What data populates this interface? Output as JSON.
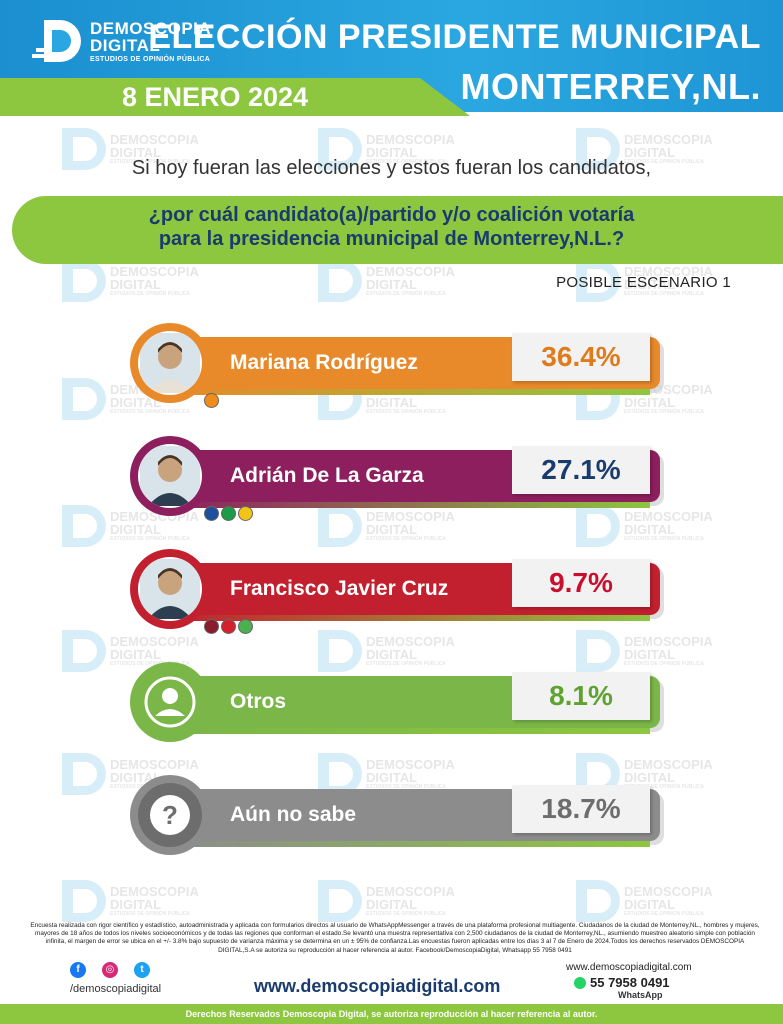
{
  "header": {
    "brand_name_1": "DEMOSCOPIA",
    "brand_name_2": "DIGITAL",
    "brand_tagline": "ESTUDIOS DE OPINIÓN PÚBLICA",
    "title_line_1": "ELECCIÓN PRESIDENTE MUNICIPAL",
    "title_line_2": "MONTERREY,NL.",
    "date": "8 ENERO 2024"
  },
  "colors": {
    "header_blue": "#2aa7e0",
    "accent_green": "#8dc63f",
    "navy": "#1a3b6e"
  },
  "watermark": {
    "line_1": "DEMOSCOPIA",
    "line_2": "DIGITAL",
    "line_3": "ESTUDIOS DE OPINIÓN PÚBLICA"
  },
  "question": {
    "intro": "Si hoy fueran las elecciones y estos fueran los candidatos,",
    "line_1": "¿por cuál candidato(a)/partido y/o coalición votaría",
    "line_2": "para la presidencia municipal de Monterrey,N.L.?",
    "scenario": "POSIBLE ESCENARIO 1"
  },
  "chart_data": {
    "type": "bar",
    "categories": [
      "Mariana Rodríguez",
      "Adrián De La Garza",
      "Francisco Javier Cruz",
      "Otros",
      "Aún no sabe"
    ],
    "values": [
      36.4,
      27.1,
      9.7,
      8.1,
      18.7
    ],
    "value_labels": [
      "36.4%",
      "27.1%",
      "9.7%",
      "8.1%",
      "18.7%"
    ],
    "unit": "%",
    "bar_colors": [
      "#e8892a",
      "#8e1f5e",
      "#c2202e",
      "#7ab648",
      "#8c8c8c"
    ],
    "pct_colors": [
      "#e07b1c",
      "#1a3b6e",
      "#c8102e",
      "#5fa230",
      "#6d6d6d"
    ],
    "icons": [
      "candidate-photo",
      "candidate-photo",
      "candidate-photo",
      "person-icon",
      "question-icon"
    ],
    "party_logos": [
      [
        "MC"
      ],
      [
        "PAN",
        "PRI",
        "PRD"
      ],
      [
        "MORENA",
        "PT",
        "PVEM"
      ],
      [],
      []
    ]
  },
  "footer": {
    "disclaimer": "Encuesta realizada con rigor científico y estadístico, autoadministrada y aplicada con formularios directos al usuario de WhatsAppMessenger a través de una plataforma profesional multiagente. Ciudadanos de la ciudad de Monterrey,NL., hombres y mujeres, mayores de 18 años de todos los niveles socioeconómicos y de todas las regiones que conforman el estado.Se levantó una muestra representativa con 2,500 ciudadanos de la ciudad de Monterrey,NL., asumiendo muestreo aleatorio simple con población infinita, el margen de error se ubica en el +/- 3.8% bajo supuesto de varianza máxima y se determina en un ± 95% de confianza.Las encuestas fueron aplicadas entre los días 3 al 7 de Enero de 2024.Todos los derechos reservados DEMOSCOPIA DIGITAL,S.A se autoriza su reproducción al hacer referencia al autor. Facebook/DemoscopiaDigital, Whatsapp 55 7958 0491",
    "social_handle": "/demoscopiadigital",
    "website": "www.demoscopiadigital.com",
    "contact_web": "www.demoscopiadigital.com",
    "whatsapp_number": "55 7958 0491",
    "whatsapp_label": "WhatsApp",
    "rights": "Derechos Reservados Demoscopia Digital, se autoriza reproducción al hacer referencia al autor."
  }
}
